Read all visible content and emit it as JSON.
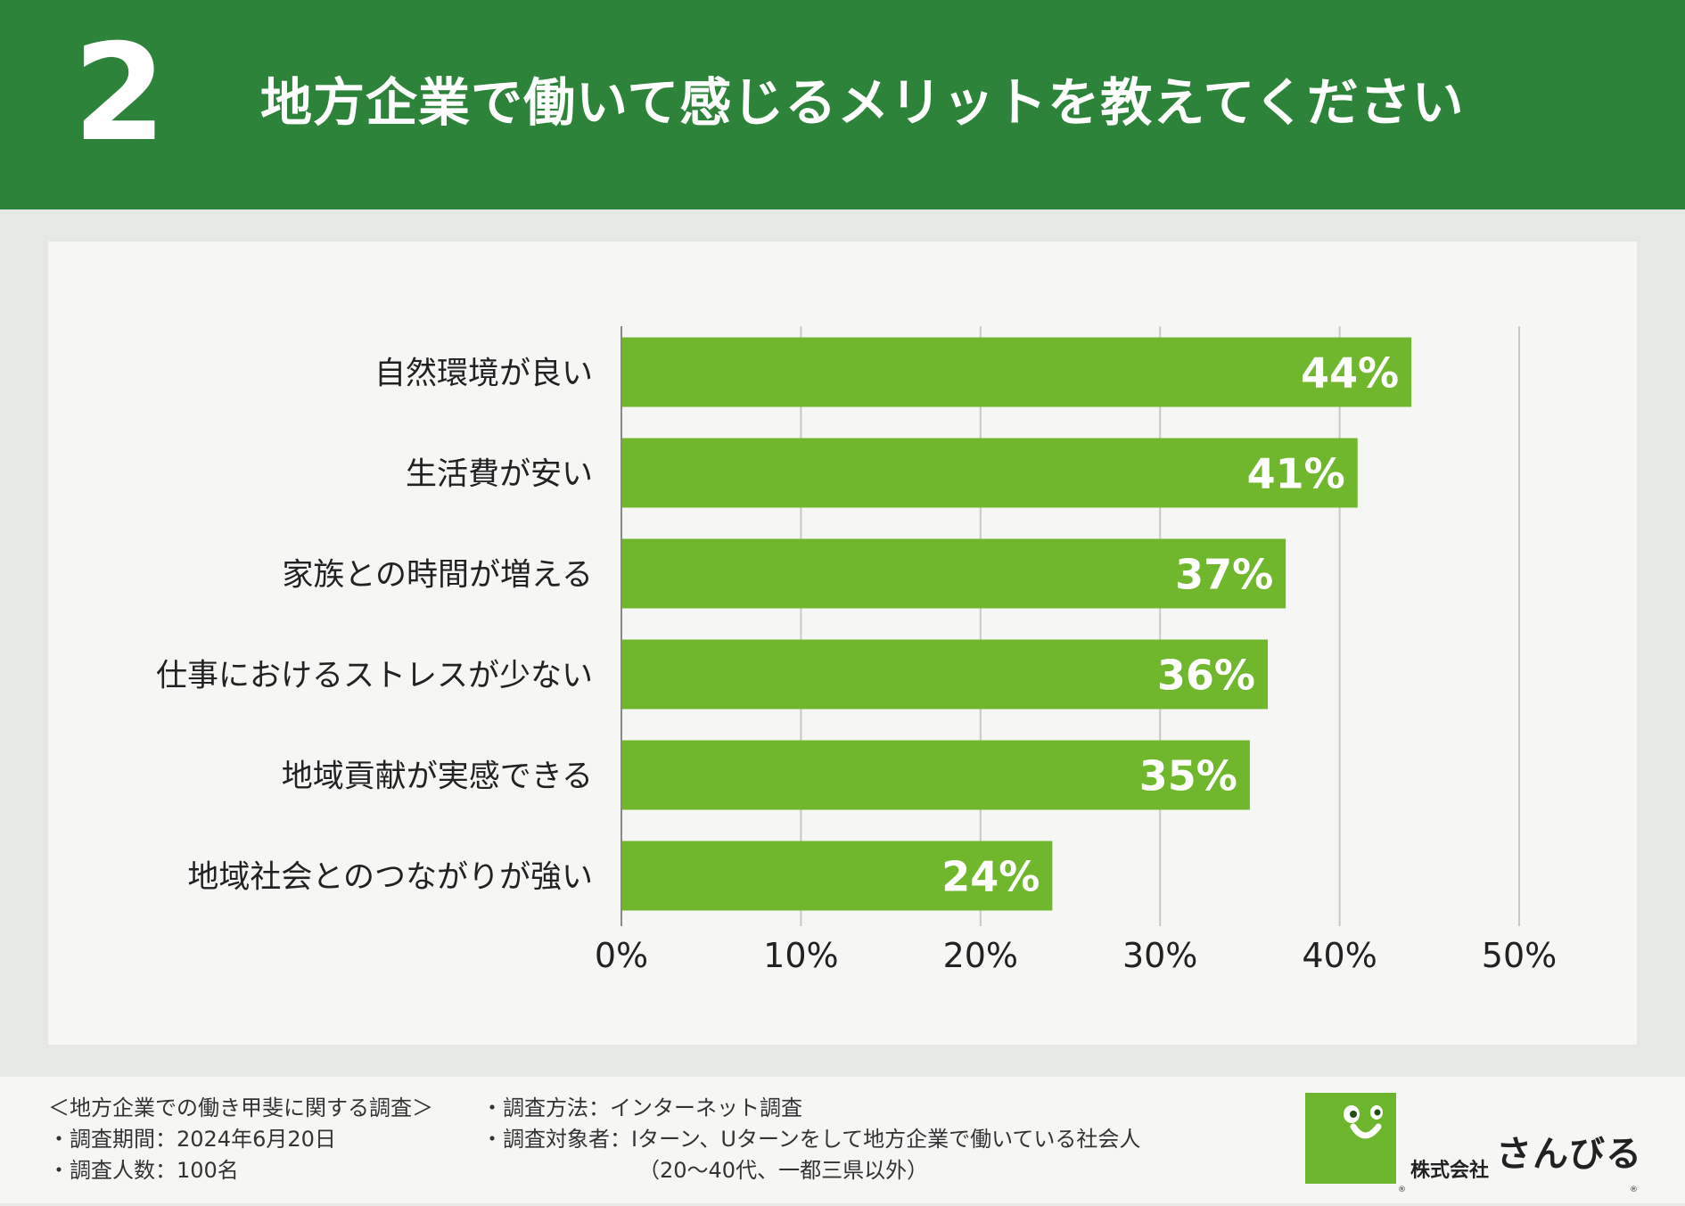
{
  "header": {
    "number": "2",
    "title": "地方企業で働いて感じるメリットを教えてください"
  },
  "chart_data": {
    "type": "bar",
    "orientation": "horizontal",
    "title": "地方企業で働いて感じるメリットを教えてください",
    "categories": [
      "自然環境が良い",
      "生活費が安い",
      "家族との時間が増える",
      "仕事におけるストレスが少ない",
      "地域貢献が実感できる",
      "地域社会とのつながりが強い"
    ],
    "values": [
      44,
      41,
      37,
      36,
      35,
      24
    ],
    "value_labels": [
      "44%",
      "41%",
      "37%",
      "36%",
      "35%",
      "24%"
    ],
    "xlim": [
      0,
      50
    ],
    "xticks": [
      "0%",
      "10%",
      "20%",
      "30%",
      "40%",
      "50%"
    ],
    "xlabel": "",
    "ylabel": "",
    "grid": true,
    "bar_color": "#70b72e"
  },
  "footer": {
    "survey_title": "＜地方企業での働き甲斐に関する調査＞",
    "period": "・調査期間：2024年6月20日",
    "count": "・調査人数：100名",
    "method": "・調査方法：インターネット調査",
    "target": "・調査対象者：Iターン、Uターンをして地方企業で働いている社会人",
    "target_note": "（20〜40代、一都三県以外）"
  },
  "logo": {
    "company_prefix": "株式会社",
    "company_name": "さんびる",
    "registered": "®"
  },
  "colors": {
    "header_bg": "#2e833b",
    "bar": "#70b72e",
    "logo_bg": "#6db52d"
  }
}
